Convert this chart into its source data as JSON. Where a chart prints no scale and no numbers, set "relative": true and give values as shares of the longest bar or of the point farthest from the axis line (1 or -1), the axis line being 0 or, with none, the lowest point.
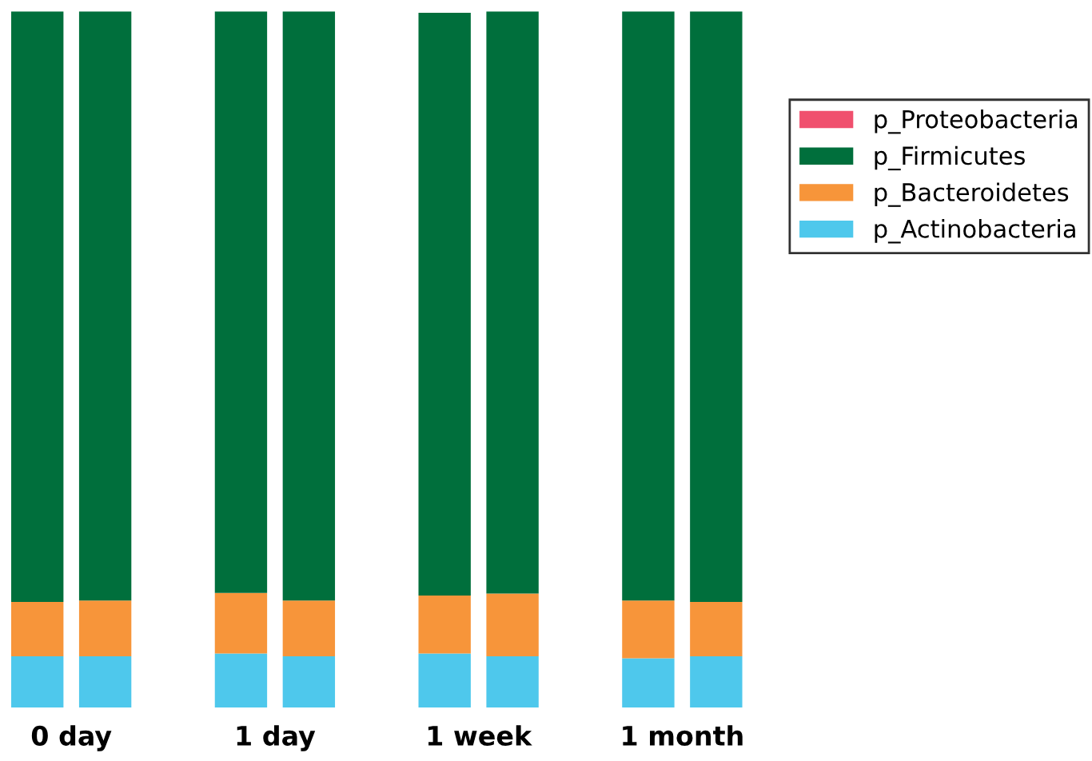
{
  "chart_data": {
    "type": "bar",
    "stacked": true,
    "relative": true,
    "legend": "right",
    "categories": [
      null,
      null,
      null,
      null,
      null,
      null,
      null,
      null
    ],
    "annotations": [
      "0 day",
      "1 day",
      "1 week",
      "1 month"
    ],
    "series": [
      {
        "name": "p_Actinobacteria",
        "color": "#4ec8ec",
        "values": [
          0.074,
          0.074,
          0.078,
          0.074,
          0.078,
          0.074,
          0.071,
          0.074
        ]
      },
      {
        "name": "p_Bacteroidetes",
        "color": "#f7953a",
        "values": [
          0.078,
          0.08,
          0.087,
          0.08,
          0.083,
          0.09,
          0.083,
          0.078
        ]
      },
      {
        "name": "p_Firmicutes",
        "color": "#006f3c",
        "values": [
          0.848,
          0.846,
          0.835,
          0.846,
          0.837,
          0.836,
          0.846,
          0.848
        ]
      },
      {
        "name": "p_Proteobacteria",
        "color": "#f0506e",
        "values": [
          0,
          0,
          0,
          0,
          0,
          0,
          0,
          0
        ]
      }
    ]
  }
}
